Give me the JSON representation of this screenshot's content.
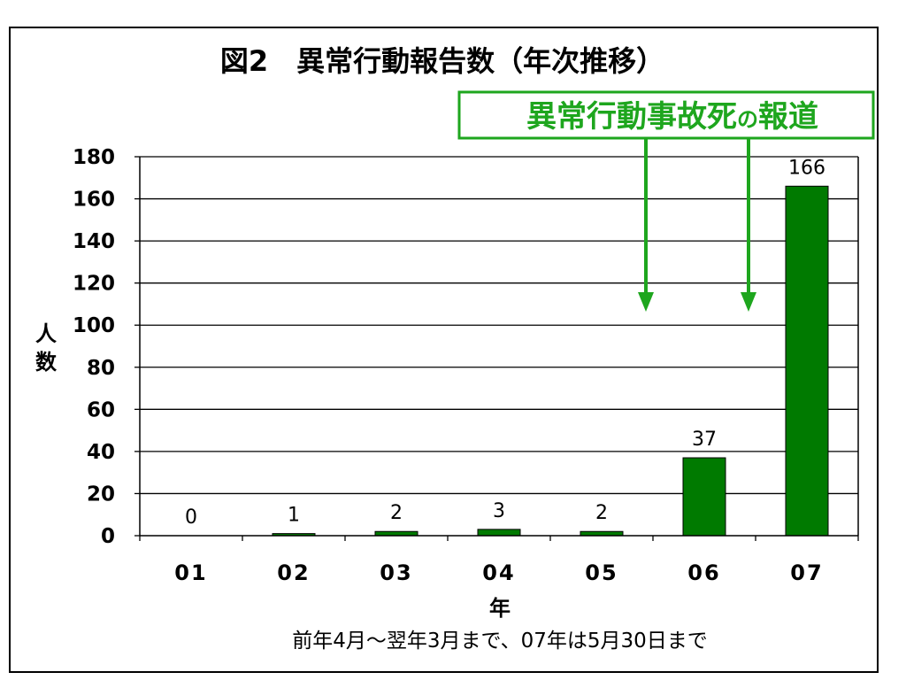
{
  "chart_data": {
    "type": "bar",
    "title": "図2　異常行動報告数（年次推移）",
    "categories": [
      "01",
      "02",
      "03",
      "04",
      "05",
      "06",
      "07"
    ],
    "values": [
      0,
      1,
      2,
      3,
      2,
      37,
      166
    ],
    "data_labels": [
      "0",
      "1",
      "2",
      "3",
      "2",
      "37",
      "166"
    ],
    "xlabel": "年",
    "ylabel": "人数",
    "ylim": [
      0,
      180
    ],
    "y_ticks": [
      0,
      20,
      40,
      60,
      80,
      100,
      120,
      140,
      160,
      180
    ],
    "grid": true,
    "note": "前年4月～翌年3月まで、07年は5月30日まで",
    "annotation": {
      "text_main": "異常行動事故死",
      "text_particle": "の",
      "text_tail": "報道",
      "arrow_positions_between": [
        "05-06",
        "06-07"
      ]
    },
    "colors": {
      "bar": "#007a00",
      "annotation": "#1ea61e",
      "grid": "#000000",
      "frame": "#000000"
    }
  }
}
